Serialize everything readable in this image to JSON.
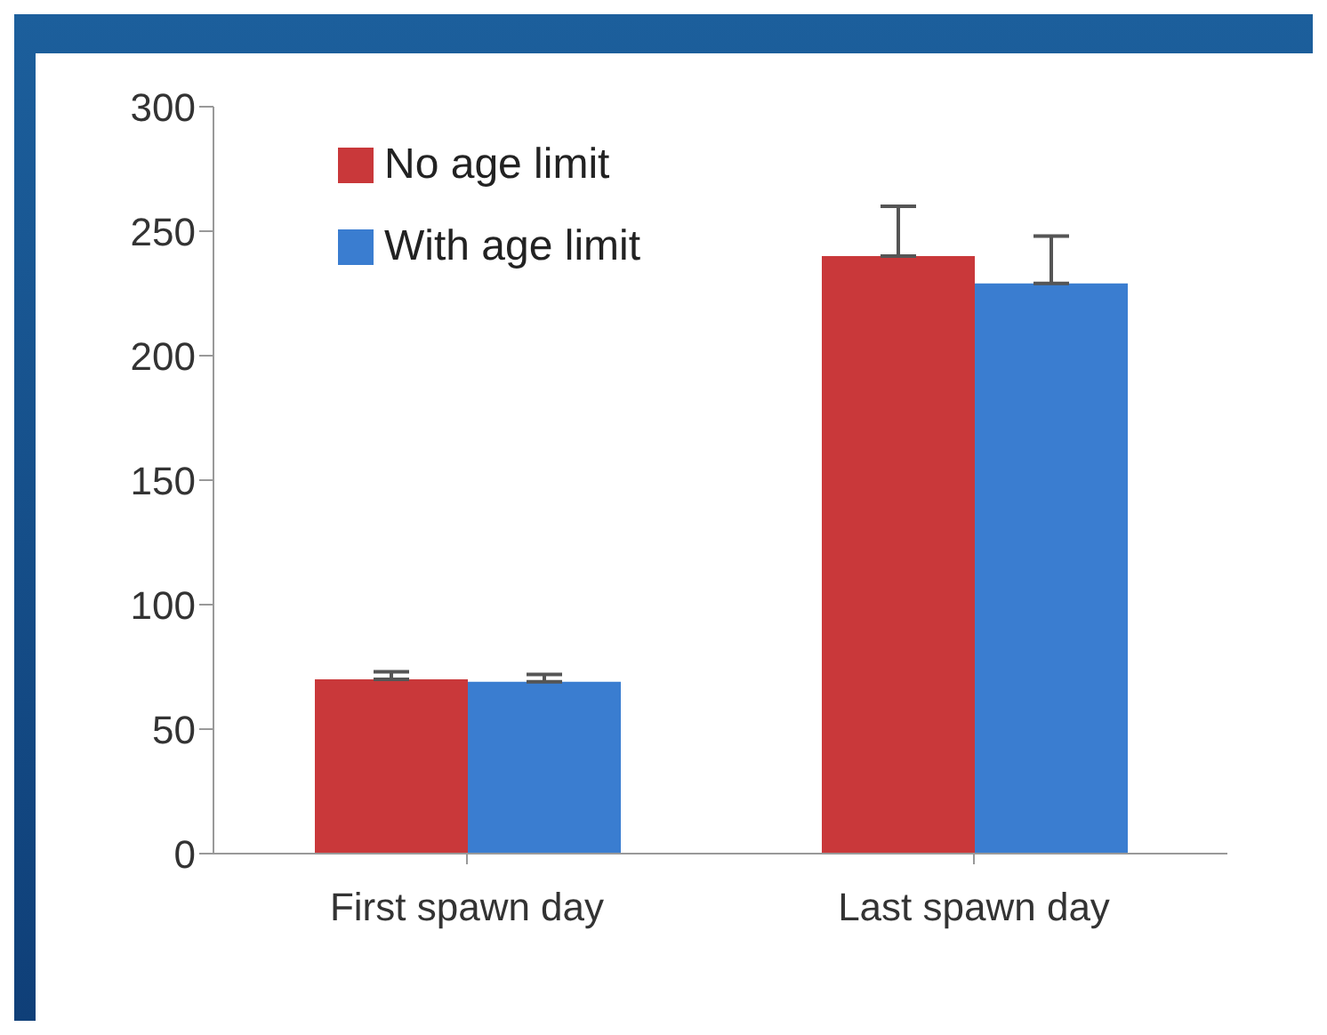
{
  "chart_data": {
    "type": "bar",
    "categories": [
      "First spawn day",
      "Last spawn day"
    ],
    "series": [
      {
        "name": "No age limit",
        "color": "#c9383a",
        "values": [
          70,
          240
        ],
        "errors": [
          [
            70,
            73
          ],
          [
            240,
            260
          ]
        ]
      },
      {
        "name": "With age limit",
        "color": "#3a7dd0",
        "values": [
          69,
          229
        ],
        "errors": [
          [
            69,
            72
          ],
          [
            229,
            248
          ]
        ]
      }
    ],
    "ylim": [
      0,
      300
    ],
    "yticks": [
      0,
      50,
      100,
      150,
      200,
      250,
      300
    ],
    "grid": false,
    "legend": "top left"
  }
}
